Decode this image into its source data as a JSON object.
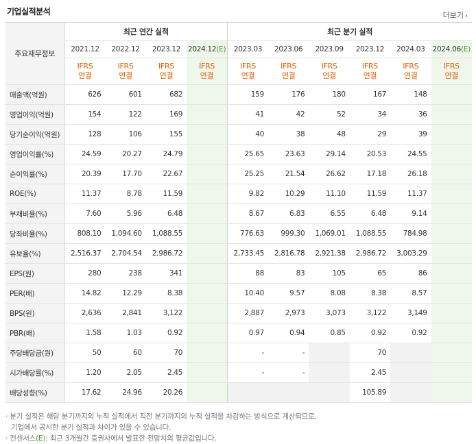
{
  "title": "기업실적분석",
  "more_label": "더보기",
  "corner_label": "주요재무정보",
  "groups": {
    "annual": "최근 연간 실적",
    "quarter": "최근 분기 실적"
  },
  "periods": [
    {
      "label": "2021.12",
      "est": false
    },
    {
      "label": "2022.12",
      "est": false
    },
    {
      "label": "2023.12",
      "est": false
    },
    {
      "label": "2024.12",
      "est": true
    },
    {
      "label": "2023.03",
      "est": false
    },
    {
      "label": "2023.06",
      "est": false
    },
    {
      "label": "2023.09",
      "est": false
    },
    {
      "label": "2023.12",
      "est": false
    },
    {
      "label": "2024.03",
      "est": false
    },
    {
      "label": "2024.06",
      "est": true
    }
  ],
  "est_mark": "(E)",
  "ifrs_line1": "IFRS",
  "ifrs_line2": "연결",
  "rows": [
    {
      "label": "매출액(억원)",
      "values": [
        "626",
        "601",
        "682",
        "",
        "159",
        "176",
        "180",
        "167",
        "148",
        ""
      ]
    },
    {
      "label": "영업이익(억원)",
      "values": [
        "154",
        "122",
        "169",
        "",
        "41",
        "42",
        "52",
        "34",
        "36",
        ""
      ]
    },
    {
      "label": "당기순이익(억원)",
      "values": [
        "128",
        "106",
        "155",
        "",
        "40",
        "38",
        "48",
        "29",
        "39",
        ""
      ]
    },
    {
      "label": "영업이익률(%)",
      "values": [
        "24.59",
        "20.27",
        "24.79",
        "",
        "25.65",
        "23.63",
        "29.14",
        "20.53",
        "24.55",
        ""
      ]
    },
    {
      "label": "순이익률(%)",
      "values": [
        "20.39",
        "17.70",
        "22.67",
        "",
        "25.25",
        "21.54",
        "26.62",
        "17.18",
        "26.18",
        ""
      ]
    },
    {
      "label": "ROE(%)",
      "values": [
        "11.37",
        "8.78",
        "11.59",
        "",
        "9.82",
        "10.29",
        "11.10",
        "11.59",
        "11.37",
        ""
      ]
    },
    {
      "label": "부채비율(%)",
      "values": [
        "7.60",
        "5.96",
        "6.48",
        "",
        "8.67",
        "6.83",
        "6.55",
        "6.48",
        "9.14",
        ""
      ]
    },
    {
      "label": "당좌비율(%)",
      "values": [
        "808.10",
        "1,094.60",
        "1,088.55",
        "",
        "776.63",
        "999.30",
        "1,069.01",
        "1,088.55",
        "784.98",
        ""
      ]
    },
    {
      "label": "유보율(%)",
      "values": [
        "2,516.37",
        "2,704.54",
        "2,986.72",
        "",
        "2,733.45",
        "2,816.78",
        "2,921.38",
        "2,986.72",
        "3,003.29",
        ""
      ]
    },
    {
      "label": "EPS(원)",
      "values": [
        "280",
        "238",
        "341",
        "",
        "88",
        "83",
        "105",
        "65",
        "86",
        ""
      ]
    },
    {
      "label": "PER(배)",
      "values": [
        "14.82",
        "12.29",
        "8.38",
        "",
        "10.40",
        "9.57",
        "8.08",
        "8.38",
        "8.57",
        ""
      ]
    },
    {
      "label": "BPS(원)",
      "values": [
        "2,636",
        "2,841",
        "3,122",
        "",
        "2,887",
        "2,973",
        "3,073",
        "3,122",
        "3,149",
        ""
      ]
    },
    {
      "label": "PBR(배)",
      "values": [
        "1.58",
        "1.03",
        "0.92",
        "",
        "0.97",
        "0.94",
        "0.85",
        "0.92",
        "0.92",
        ""
      ]
    },
    {
      "label": "주당배당금(원)",
      "values": [
        "50",
        "60",
        "70",
        "",
        "-",
        "-",
        "",
        "70",
        "",
        ""
      ]
    },
    {
      "label": "시가배당률(%)",
      "values": [
        "1.20",
        "2.05",
        "2.45",
        "",
        "-",
        "-",
        "",
        "2.45",
        "",
        ""
      ]
    },
    {
      "label": "배당성향(%)",
      "values": [
        "17.62",
        "24.96",
        "20.26",
        "",
        "",
        "",
        "",
        "105.89",
        "",
        ""
      ]
    }
  ],
  "blank_cells": [
    [
      13,
      6
    ],
    [
      13,
      8
    ],
    [
      14,
      6
    ],
    [
      14,
      8
    ],
    [
      15,
      4
    ],
    [
      15,
      5
    ],
    [
      15,
      6
    ],
    [
      15,
      8
    ]
  ],
  "notes": {
    "line1": "· 분기 실적은 해당 분기까지의 누적 실적에서 직전 분기까지의 누적 실적을 차감하는 방식으로 계산되므로,",
    "line2": "기업에서 공시한 분기 실적과 차이가 있을 수 있습니다.",
    "line3_pre": "· 컨센서스",
    "line3_e": "(E)",
    "line3_post": ": 최근 3개월간 증권사에서 발표한 전망치의 평균값입니다."
  },
  "colors": {
    "accent_orange": "#e55d00",
    "estimate_green": "#4a9a2a",
    "estimate_bg": "#eef7ea"
  }
}
